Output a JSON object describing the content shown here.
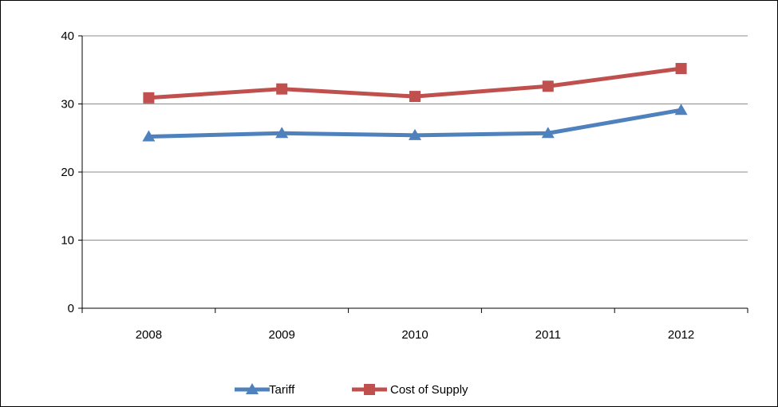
{
  "chart_data": {
    "type": "line",
    "categories": [
      "2008",
      "2009",
      "2010",
      "2011",
      "2012"
    ],
    "series": [
      {
        "name": "Tariff",
        "values": [
          25.2,
          25.7,
          25.4,
          25.7,
          29.1
        ],
        "color": "#4F81BD",
        "marker": "triangle"
      },
      {
        "name": "Cost of Supply",
        "values": [
          30.9,
          32.2,
          31.1,
          32.6,
          35.2
        ],
        "color": "#C0504D",
        "marker": "square"
      }
    ],
    "ylim": [
      0,
      40
    ],
    "yticks": [
      0,
      10,
      20,
      30,
      40
    ],
    "grid": true,
    "legend": "bottom"
  }
}
